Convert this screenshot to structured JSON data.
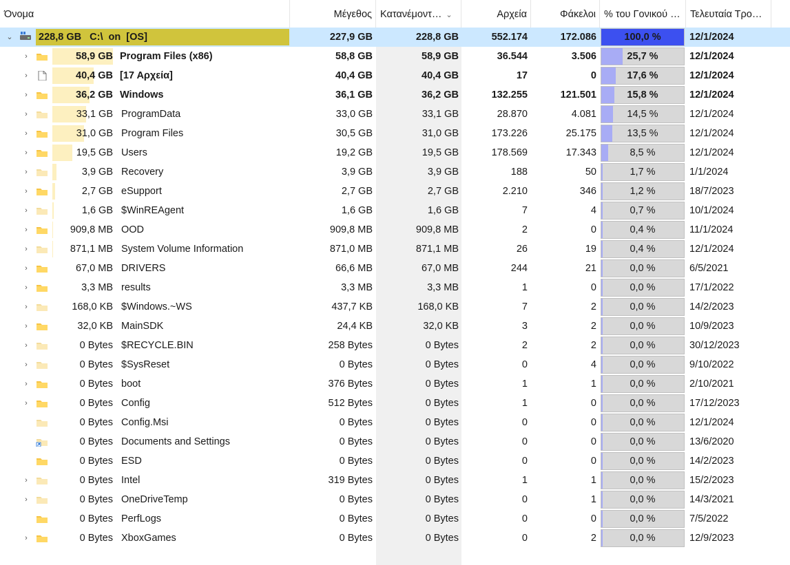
{
  "header": {
    "name": "Όνομα",
    "size": "Μέγεθος",
    "allocated": "Κατανέμοντ…",
    "files": "Αρχεία",
    "folders": "Φάκελοι",
    "percent_parent": "% του Γονικού …",
    "last_modified": "Τελευταία Τρο…"
  },
  "colors": {
    "selection": "#cce8ff",
    "drive_bar": "#d0c43c",
    "size_bar": "#fdf0c0",
    "percent_fill": "#a8acf5",
    "percent_fill_full": "#3c50f0"
  },
  "root": {
    "icon": "drive-icon",
    "name": "228,8 GB   C:\\  on  [OS]",
    "size": "227,9 GB",
    "allocated": "228,8 GB",
    "files": "552.174",
    "folders": "172.086",
    "percent": "100,0 %",
    "percent_value": 100,
    "modified": "12/1/2024"
  },
  "rows": [
    {
      "expand": true,
      "icon": "folder-icon",
      "size_label": "58,9 GB",
      "name": "Program Files (x86)",
      "size": "58,8 GB",
      "allocated": "58,9 GB",
      "files": "36.544",
      "folders": "3.506",
      "percent": "25,7 %",
      "percent_value": 25.7,
      "modified": "12/1/2024",
      "bold": true
    },
    {
      "expand": true,
      "icon": "file-icon",
      "size_label": "40,4 GB",
      "name": "[17 Αρχεία]",
      "size": "40,4 GB",
      "allocated": "40,4 GB",
      "files": "17",
      "folders": "0",
      "percent": "17,6 %",
      "percent_value": 17.6,
      "modified": "12/1/2024",
      "bold": true
    },
    {
      "expand": true,
      "icon": "folder-icon",
      "size_label": "36,2 GB",
      "name": "Windows",
      "size": "36,1 GB",
      "allocated": "36,2 GB",
      "files": "132.255",
      "folders": "121.501",
      "percent": "15,8 %",
      "percent_value": 15.8,
      "modified": "12/1/2024",
      "bold": true
    },
    {
      "expand": true,
      "icon": "folder-light-icon",
      "size_label": "33,1 GB",
      "name": "ProgramData",
      "size": "33,0 GB",
      "allocated": "33,1 GB",
      "files": "28.870",
      "folders": "4.081",
      "percent": "14,5 %",
      "percent_value": 14.5,
      "modified": "12/1/2024"
    },
    {
      "expand": true,
      "icon": "folder-icon",
      "size_label": "31,0 GB",
      "name": "Program Files",
      "size": "30,5 GB",
      "allocated": "31,0 GB",
      "files": "173.226",
      "folders": "25.175",
      "percent": "13,5 %",
      "percent_value": 13.5,
      "modified": "12/1/2024"
    },
    {
      "expand": true,
      "icon": "folder-icon",
      "size_label": "19,5 GB",
      "name": "Users",
      "size": "19,2 GB",
      "allocated": "19,5 GB",
      "files": "178.569",
      "folders": "17.343",
      "percent": "8,5 %",
      "percent_value": 8.5,
      "modified": "12/1/2024"
    },
    {
      "expand": true,
      "icon": "folder-light-icon",
      "size_label": "3,9 GB",
      "name": "Recovery",
      "size": "3,9 GB",
      "allocated": "3,9 GB",
      "files": "188",
      "folders": "50",
      "percent": "1,7 %",
      "percent_value": 1.7,
      "modified": "1/1/2024"
    },
    {
      "expand": true,
      "icon": "folder-icon",
      "size_label": "2,7 GB",
      "name": "eSupport",
      "size": "2,7 GB",
      "allocated": "2,7 GB",
      "files": "2.210",
      "folders": "346",
      "percent": "1,2 %",
      "percent_value": 1.2,
      "modified": "18/7/2023"
    },
    {
      "expand": true,
      "icon": "folder-light-icon",
      "size_label": "1,6 GB",
      "name": "$WinREAgent",
      "size": "1,6 GB",
      "allocated": "1,6 GB",
      "files": "7",
      "folders": "4",
      "percent": "0,7 %",
      "percent_value": 0.7,
      "modified": "10/1/2024"
    },
    {
      "expand": true,
      "icon": "folder-icon",
      "size_label": "909,8 MB",
      "name": "OOD",
      "size": "909,8 MB",
      "allocated": "909,8 MB",
      "files": "2",
      "folders": "0",
      "percent": "0,4 %",
      "percent_value": 0.4,
      "modified": "11/1/2024"
    },
    {
      "expand": true,
      "icon": "folder-light-icon",
      "size_label": "871,1 MB",
      "name": "System Volume Information",
      "size": "871,0 MB",
      "allocated": "871,1 MB",
      "files": "26",
      "folders": "19",
      "percent": "0,4 %",
      "percent_value": 0.4,
      "modified": "12/1/2024"
    },
    {
      "expand": true,
      "icon": "folder-icon",
      "size_label": "67,0 MB",
      "name": "DRIVERS",
      "size": "66,6 MB",
      "allocated": "67,0 MB",
      "files": "244",
      "folders": "21",
      "percent": "0,0 %",
      "percent_value": 0,
      "modified": "6/5/2021"
    },
    {
      "expand": true,
      "icon": "folder-icon",
      "size_label": "3,3 MB",
      "name": "results",
      "size": "3,3 MB",
      "allocated": "3,3 MB",
      "files": "1",
      "folders": "0",
      "percent": "0,0 %",
      "percent_value": 0,
      "modified": "17/1/2022"
    },
    {
      "expand": true,
      "icon": "folder-light-icon",
      "size_label": "168,0 KB",
      "name": "$Windows.~WS",
      "size": "437,7 KB",
      "allocated": "168,0 KB",
      "files": "7",
      "folders": "2",
      "percent": "0,0 %",
      "percent_value": 0,
      "modified": "14/2/2023"
    },
    {
      "expand": true,
      "icon": "folder-icon",
      "size_label": "32,0 KB",
      "name": "MainSDK",
      "size": "24,4 KB",
      "allocated": "32,0 KB",
      "files": "3",
      "folders": "2",
      "percent": "0,0 %",
      "percent_value": 0,
      "modified": "10/9/2023"
    },
    {
      "expand": true,
      "icon": "folder-light-icon",
      "size_label": "0 Bytes",
      "name": "$RECYCLE.BIN",
      "size": "258 Bytes",
      "allocated": "0 Bytes",
      "files": "2",
      "folders": "2",
      "percent": "0,0 %",
      "percent_value": 0,
      "modified": "30/12/2023"
    },
    {
      "expand": true,
      "icon": "folder-light-icon",
      "size_label": "0 Bytes",
      "name": "$SysReset",
      "size": "0 Bytes",
      "allocated": "0 Bytes",
      "files": "0",
      "folders": "4",
      "percent": "0,0 %",
      "percent_value": 0,
      "modified": "9/10/2022"
    },
    {
      "expand": true,
      "icon": "folder-icon",
      "size_label": "0 Bytes",
      "name": "boot",
      "size": "376 Bytes",
      "allocated": "0 Bytes",
      "files": "1",
      "folders": "1",
      "percent": "0,0 %",
      "percent_value": 0,
      "modified": "2/10/2021"
    },
    {
      "expand": true,
      "icon": "folder-icon",
      "size_label": "0 Bytes",
      "name": "Config",
      "size": "512 Bytes",
      "allocated": "0 Bytes",
      "files": "1",
      "folders": "0",
      "percent": "0,0 %",
      "percent_value": 0,
      "modified": "17/12/2023"
    },
    {
      "expand": false,
      "icon": "folder-light-icon",
      "size_label": "0 Bytes",
      "name": "Config.Msi",
      "size": "0 Bytes",
      "allocated": "0 Bytes",
      "files": "0",
      "folders": "0",
      "percent": "0,0 %",
      "percent_value": 0,
      "modified": "12/1/2024"
    },
    {
      "expand": false,
      "icon": "shortcut-folder-icon",
      "size_label": "0 Bytes",
      "name": "Documents and Settings",
      "size": "0 Bytes",
      "allocated": "0 Bytes",
      "files": "0",
      "folders": "0",
      "percent": "0,0 %",
      "percent_value": 0,
      "modified": "13/6/2020"
    },
    {
      "expand": false,
      "icon": "folder-icon",
      "size_label": "0 Bytes",
      "name": "ESD",
      "size": "0 Bytes",
      "allocated": "0 Bytes",
      "files": "0",
      "folders": "0",
      "percent": "0,0 %",
      "percent_value": 0,
      "modified": "14/2/2023"
    },
    {
      "expand": true,
      "icon": "folder-light-icon",
      "size_label": "0 Bytes",
      "name": "Intel",
      "size": "319 Bytes",
      "allocated": "0 Bytes",
      "files": "1",
      "folders": "1",
      "percent": "0,0 %",
      "percent_value": 0,
      "modified": "15/2/2023"
    },
    {
      "expand": true,
      "icon": "folder-light-icon",
      "size_label": "0 Bytes",
      "name": "OneDriveTemp",
      "size": "0 Bytes",
      "allocated": "0 Bytes",
      "files": "0",
      "folders": "1",
      "percent": "0,0 %",
      "percent_value": 0,
      "modified": "14/3/2021"
    },
    {
      "expand": false,
      "icon": "folder-icon",
      "size_label": "0 Bytes",
      "name": "PerfLogs",
      "size": "0 Bytes",
      "allocated": "0 Bytes",
      "files": "0",
      "folders": "0",
      "percent": "0,0 %",
      "percent_value": 0,
      "modified": "7/5/2022"
    },
    {
      "expand": true,
      "icon": "folder-icon",
      "size_label": "0 Bytes",
      "name": "XboxGames",
      "size": "0 Bytes",
      "allocated": "0 Bytes",
      "files": "0",
      "folders": "2",
      "percent": "0,0 %",
      "percent_value": 0,
      "modified": "12/9/2023"
    }
  ]
}
